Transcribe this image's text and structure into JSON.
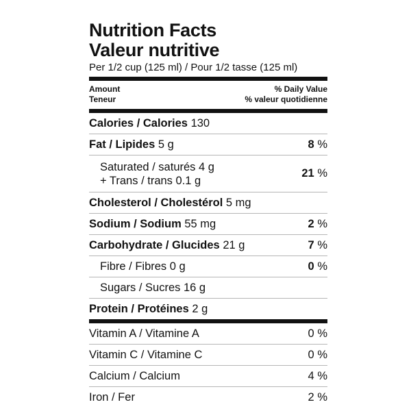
{
  "title_en": "Nutrition Facts",
  "title_fr": "Valeur nutritive",
  "serving": "Per 1/2 cup (125 ml) / Pour 1/2 tasse (125 ml)",
  "header": {
    "amount_en": "Amount",
    "amount_fr": "Teneur",
    "dv_en": "% Daily Value",
    "dv_fr": "% valeur quotidienne"
  },
  "calories": {
    "label": "Calories / Calories",
    "value": "130"
  },
  "fat": {
    "label": "Fat / Lipides",
    "value": "5 g",
    "dv": "8",
    "unit": "%"
  },
  "saturated": {
    "label": "Saturated / saturés",
    "value": "4 g",
    "trans_label": "+ Trans / trans",
    "trans_value": "0.1 g",
    "dv": "21",
    "unit": "%"
  },
  "cholesterol": {
    "label": "Cholesterol / Cholestérol",
    "value": "5 mg"
  },
  "sodium": {
    "label": "Sodium / Sodium",
    "value": "55 mg",
    "dv": "2",
    "unit": "%"
  },
  "carbohydrate": {
    "label": "Carbohydrate / Glucides",
    "value": "21 g",
    "dv": "7",
    "unit": "%"
  },
  "fibre": {
    "label": "Fibre / Fibres",
    "value": "0 g",
    "dv": "0",
    "unit": "%"
  },
  "sugars": {
    "label": "Sugars / Sucres",
    "value": "16 g"
  },
  "protein": {
    "label": "Protein / Protéines",
    "value": "2 g"
  },
  "vitamins": [
    {
      "label": "Vitamin A / Vitamine A",
      "dv": "0",
      "unit": "%"
    },
    {
      "label": "Vitamin C / Vitamine C",
      "dv": "0",
      "unit": "%"
    },
    {
      "label": "Calcium / Calcium",
      "dv": "4",
      "unit": "%"
    },
    {
      "label": "Iron / Fer",
      "dv": "2",
      "unit": "%"
    }
  ]
}
